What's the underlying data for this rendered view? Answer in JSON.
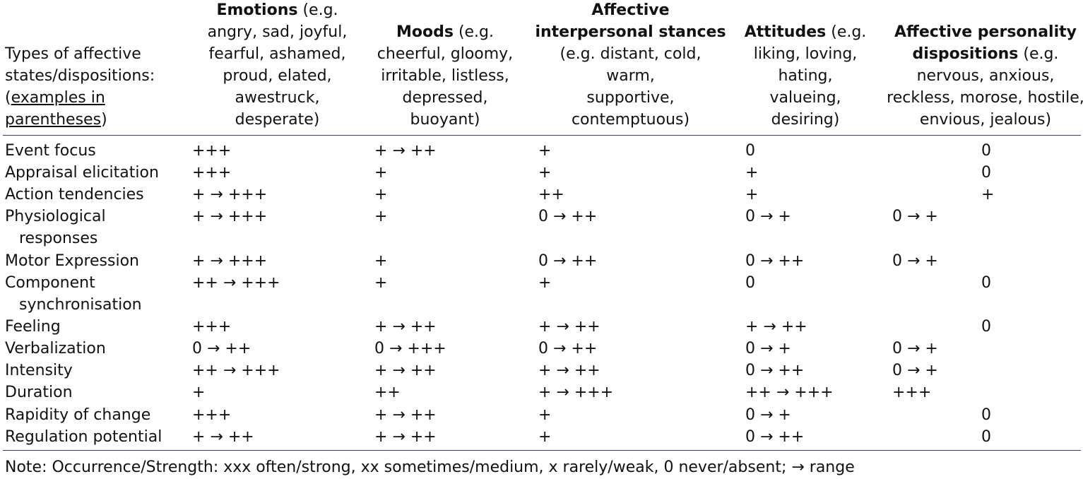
{
  "header": {
    "row_label": [
      "Types of affective",
      "states/dispositions:",
      "(",
      "examples in",
      "parentheses",
      ")"
    ],
    "emotions": {
      "title": "Emotions",
      "examples": [
        "(e.g.",
        "angry, sad, joyful,",
        "fearful, ashamed,",
        "proud, elated,",
        "awestruck,",
        "desperate)"
      ]
    },
    "moods": {
      "title": "Moods",
      "examples": [
        "(e.g.",
        "cheerful, gloomy,",
        "irritable, listless,",
        "depressed,",
        "buoyant)"
      ]
    },
    "stances": {
      "title_lines": [
        "Affective",
        "interpersonal stances"
      ],
      "examples": [
        "(e.g. distant, cold, warm,",
        "supportive,",
        "contemptuous)"
      ]
    },
    "attitudes": {
      "title": "Attitudes",
      "examples": [
        "(e.g.",
        "liking, loving,",
        "hating,",
        "valueing,",
        "desiring)"
      ]
    },
    "dispositions": {
      "title_lines": [
        "Affective personality",
        "dispositions"
      ],
      "examples": [
        "(e.g.",
        "nervous, anxious,",
        "reckless, morose, hostile,",
        "envious, jealous)"
      ]
    }
  },
  "rows": [
    {
      "label": [
        "Event focus"
      ],
      "cells": [
        "+++",
        "+ → ++",
        "+",
        "0",
        "",
        "0"
      ]
    },
    {
      "label": [
        "Appraisal elicitation"
      ],
      "cells": [
        "+++",
        "+",
        "+",
        "+",
        "",
        "0"
      ]
    },
    {
      "label": [
        "Action tendencies"
      ],
      "cells": [
        "+ → +++",
        "+",
        "++",
        "+",
        "",
        "+"
      ]
    },
    {
      "label": [
        "Physiological",
        "responses"
      ],
      "cells": [
        "+ → +++",
        "+",
        "0 → ++",
        "0 → +",
        "0 → +",
        ""
      ]
    },
    {
      "label": [
        "Motor Expression"
      ],
      "cells": [
        "+ → +++",
        "+",
        "0 → ++",
        "0 → ++",
        "0 → +",
        ""
      ]
    },
    {
      "label": [
        "Component",
        "synchronisation"
      ],
      "cells": [
        "++ → +++",
        "+",
        "+",
        "0",
        "",
        "0"
      ]
    },
    {
      "label": [
        "Feeling"
      ],
      "cells": [
        "+++",
        "+ → ++",
        "+ → ++",
        "+ → ++",
        "",
        "0"
      ]
    },
    {
      "label": [
        "Verbalization"
      ],
      "cells": [
        "0 → ++",
        "0 → +++",
        "0 → ++",
        "0 → +",
        "0 → +",
        ""
      ]
    },
    {
      "label": [
        "Intensity"
      ],
      "cells": [
        "++ → +++",
        "+ → ++",
        "+ → ++",
        "0 → ++",
        "0 → +",
        ""
      ]
    },
    {
      "label": [
        "Duration"
      ],
      "cells": [
        "+",
        "++",
        "+ → +++",
        "++ → +++",
        "+++",
        ""
      ]
    },
    {
      "label": [
        "Rapidity of change"
      ],
      "cells": [
        "+++",
        "+ → ++",
        "+",
        "0 → +",
        "",
        "0"
      ]
    },
    {
      "label": [
        "Regulation potential"
      ],
      "cells": [
        "+ → ++",
        "+ → ++",
        "+",
        "0 → ++",
        "",
        "0"
      ]
    }
  ],
  "note": "Note: Occurrence/Strength: xxx often/strong, xx sometimes/medium, x rarely/weak, 0 never/absent; → range"
}
